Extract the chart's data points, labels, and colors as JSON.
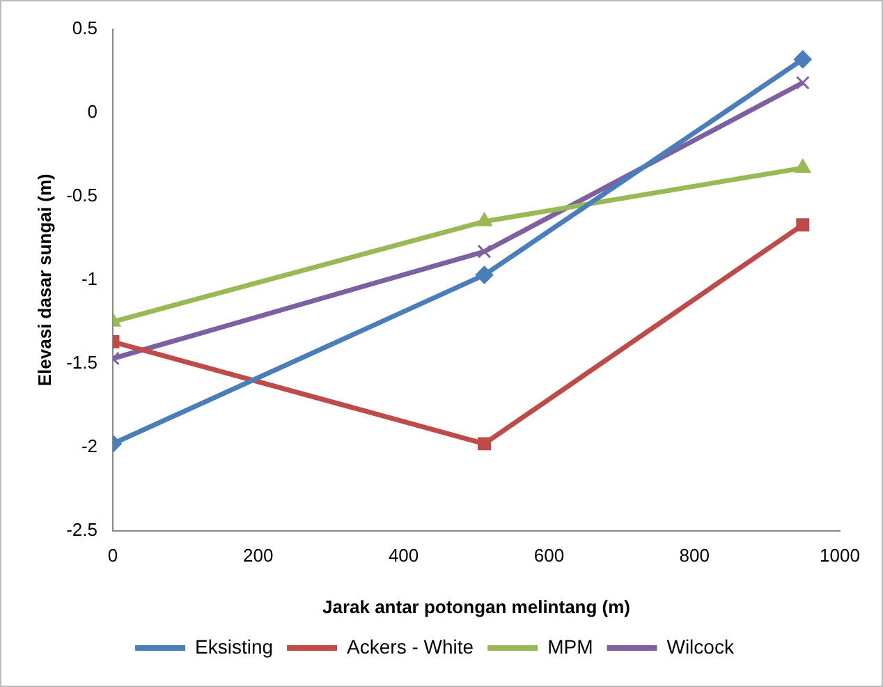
{
  "chart_data": {
    "type": "line",
    "xlabel": "Jarak antar potongan melintang (m)",
    "ylabel": "Elevasi dasar sungai (m)",
    "x": [
      0,
      511,
      949
    ],
    "series": [
      {
        "name": "Eksisting",
        "color": "#4a7ebb",
        "marker": "diamond",
        "values": [
          -1.98,
          -0.97,
          0.32
        ]
      },
      {
        "name": "Ackers - White",
        "color": "#be4b48",
        "marker": "square",
        "values": [
          -1.37,
          -1.98,
          -0.67
        ]
      },
      {
        "name": "MPM",
        "color": "#98b954",
        "marker": "triangle",
        "values": [
          -1.25,
          -0.65,
          -0.33
        ]
      },
      {
        "name": "Wilcock",
        "color": "#7d60a0",
        "marker": "cross",
        "values": [
          -1.47,
          -0.83,
          0.18
        ]
      }
    ],
    "xlim": [
      0,
      1000
    ],
    "xticks": [
      0,
      200,
      400,
      600,
      800,
      1000
    ],
    "ylim": [
      -2.5,
      0.5
    ],
    "yticks": [
      -2.5,
      -2,
      -1.5,
      -1,
      -0.5,
      0,
      0.5
    ],
    "grid": false,
    "legend": "bottom"
  }
}
